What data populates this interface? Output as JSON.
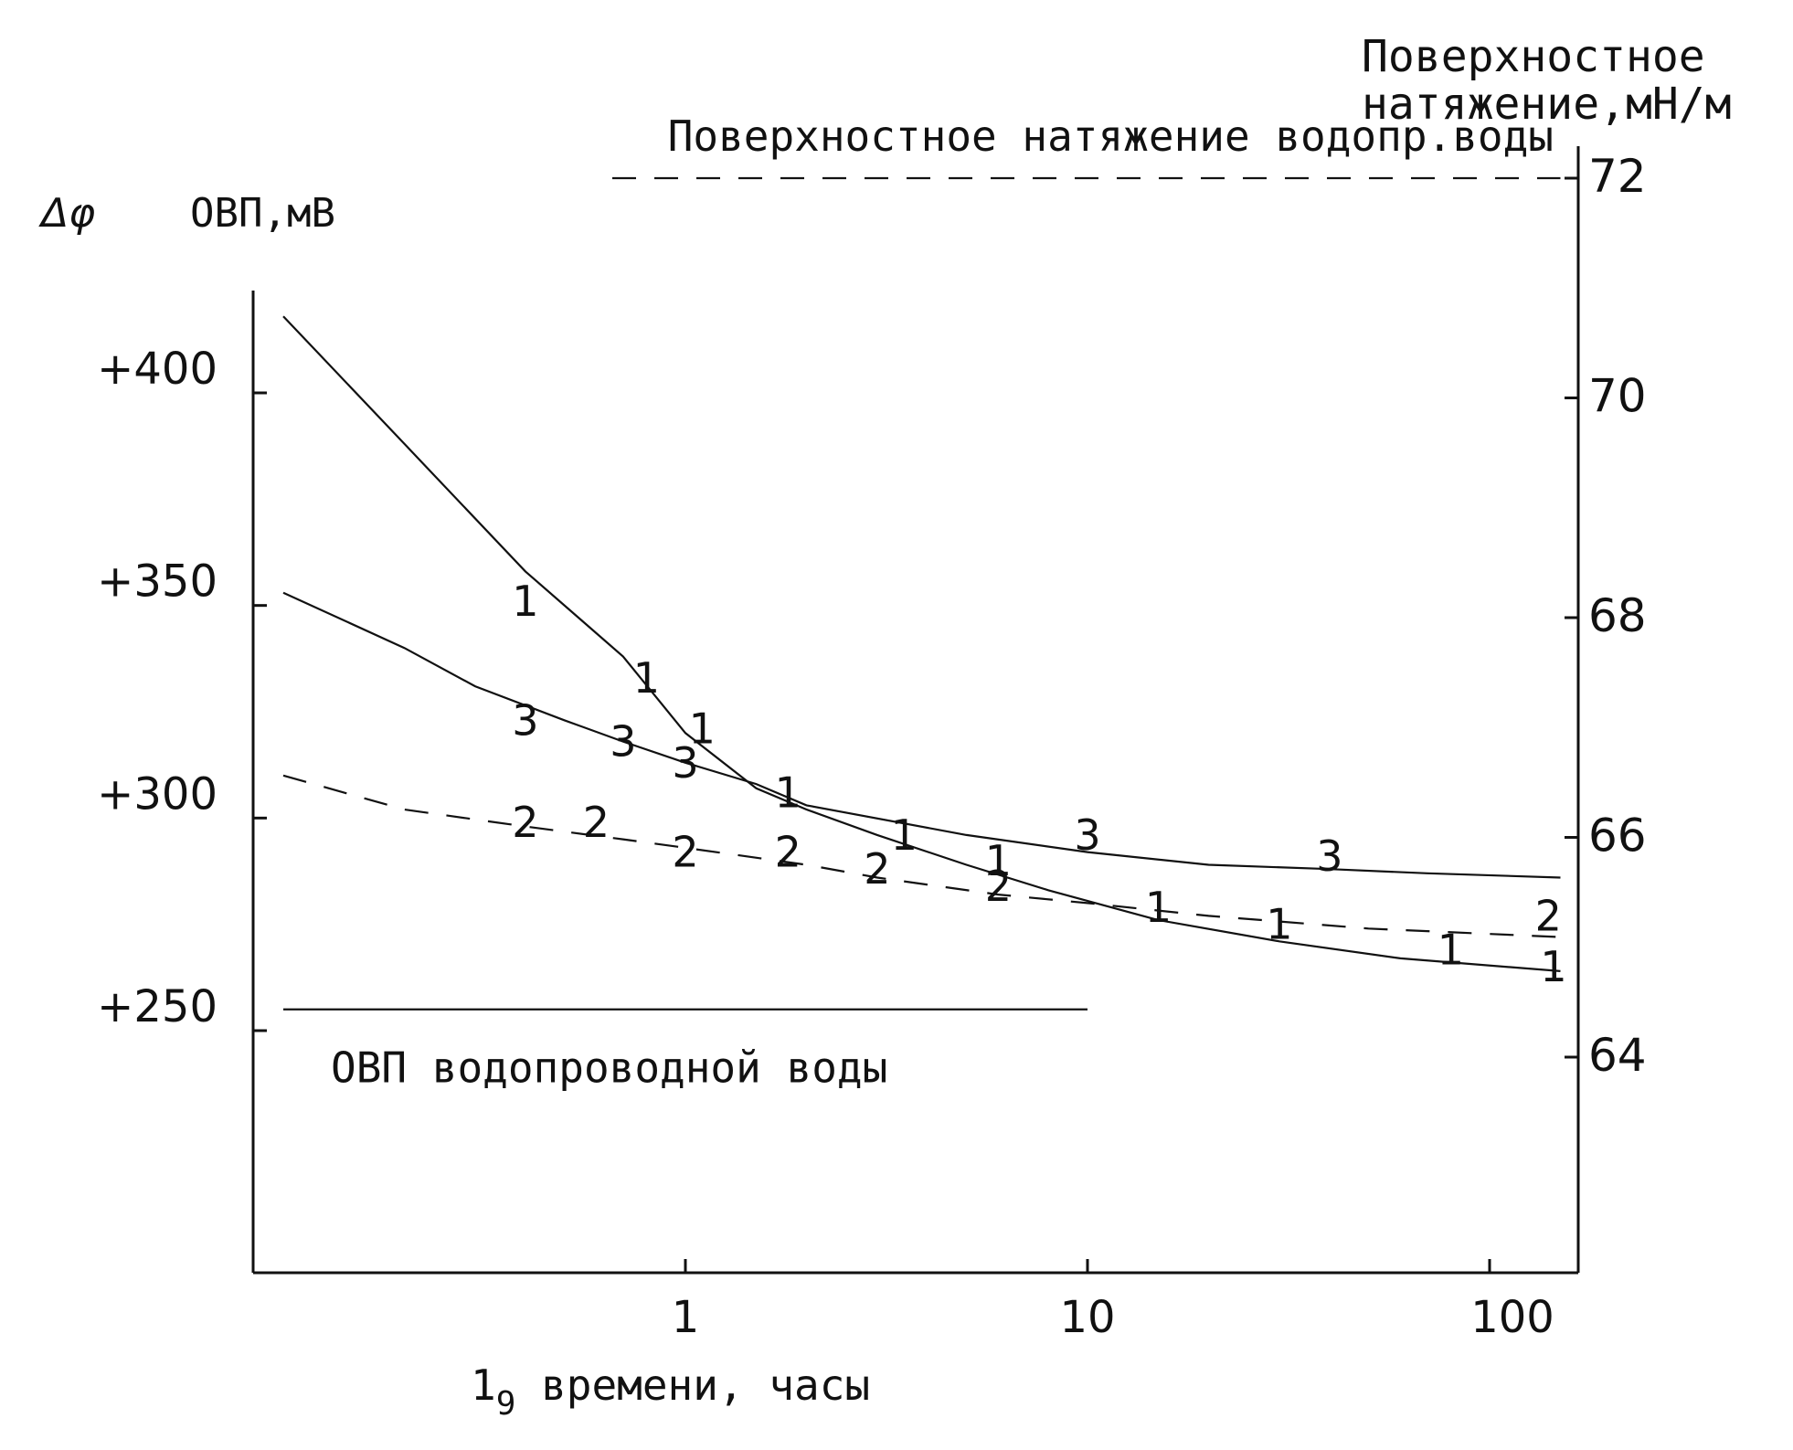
{
  "chart_data": {
    "type": "line",
    "title": "",
    "xlabel": "lg времени, часы",
    "xlabel_main": "1",
    "xlabel_sub": "9",
    "xlabel_rest": " времени, часы",
    "ylabel_left": "Δφ ОВП,мВ",
    "ylabel_left_symbol": "Δφ",
    "ylabel_left_text": "ОВП,мВ",
    "ylabel_right_line1": "Поверхностное",
    "ylabel_right_line2": "натяжение,мН/м",
    "x_scale": "log",
    "x_ticks": [
      "1",
      "10",
      "100"
    ],
    "x_range_hours": [
      0.1,
      150
    ],
    "y_left_ticks": [
      "+400",
      "+350",
      "+300",
      "+250"
    ],
    "y_left_range": [
      210,
      425
    ],
    "y_right_ticks": [
      "72",
      "70",
      "68",
      "66",
      "64"
    ],
    "y_right_range": [
      62,
      72.5
    ],
    "grid": false,
    "reference_lines": [
      {
        "label": "ОВП водопроводной воды",
        "axis": "left",
        "y": 255,
        "x_range": [
          0.1,
          10
        ]
      },
      {
        "label": "Поверхностное натяжение водопр.воды",
        "axis": "right",
        "y": 72,
        "x_range": [
          0.1,
          150
        ],
        "style": "dashed"
      }
    ],
    "series": [
      {
        "name": "1",
        "style": "solid",
        "x": [
          0.1,
          0.2,
          0.4,
          0.7,
          1.0,
          1.5,
          2.0,
          3.0,
          5.0,
          8.0,
          15,
          30,
          60,
          150
        ],
        "y": [
          418,
          388,
          358,
          338,
          320,
          307,
          302,
          296,
          289,
          283,
          276,
          271,
          267,
          264
        ],
        "label_x": [
          0.4,
          0.8,
          1.1,
          1.8,
          3.5,
          6,
          15,
          30,
          80,
          160
        ],
        "label_y": [
          351,
          333,
          321,
          306,
          296,
          290,
          279,
          275,
          269,
          265
        ]
      },
      {
        "name": "2",
        "style": "dashed",
        "x": [
          0.1,
          0.2,
          0.4,
          0.7,
          1.0,
          2.0,
          3.0,
          6.0,
          10,
          20,
          50,
          150
        ],
        "y": [
          310,
          302,
          298,
          295,
          293,
          289,
          286,
          282,
          280,
          277,
          274,
          272
        ],
        "label_x": [
          0.4,
          0.6,
          1.0,
          1.8,
          3.0,
          6.0,
          140
        ],
        "label_y": [
          299,
          299,
          292,
          292,
          288,
          284,
          277
        ]
      },
      {
        "name": "3",
        "style": "solid",
        "x": [
          0.1,
          0.2,
          0.3,
          0.5,
          0.7,
          1.0,
          1.5,
          2.0,
          5.0,
          10,
          20,
          40,
          70,
          150
        ],
        "y": [
          353,
          340,
          331,
          323,
          318,
          313,
          308,
          303,
          296,
          292,
          289,
          288,
          287,
          286
        ],
        "label_x": [
          0.4,
          0.7,
          1.0,
          10,
          40
        ],
        "label_y": [
          323,
          318,
          313,
          296,
          291
        ]
      }
    ]
  }
}
